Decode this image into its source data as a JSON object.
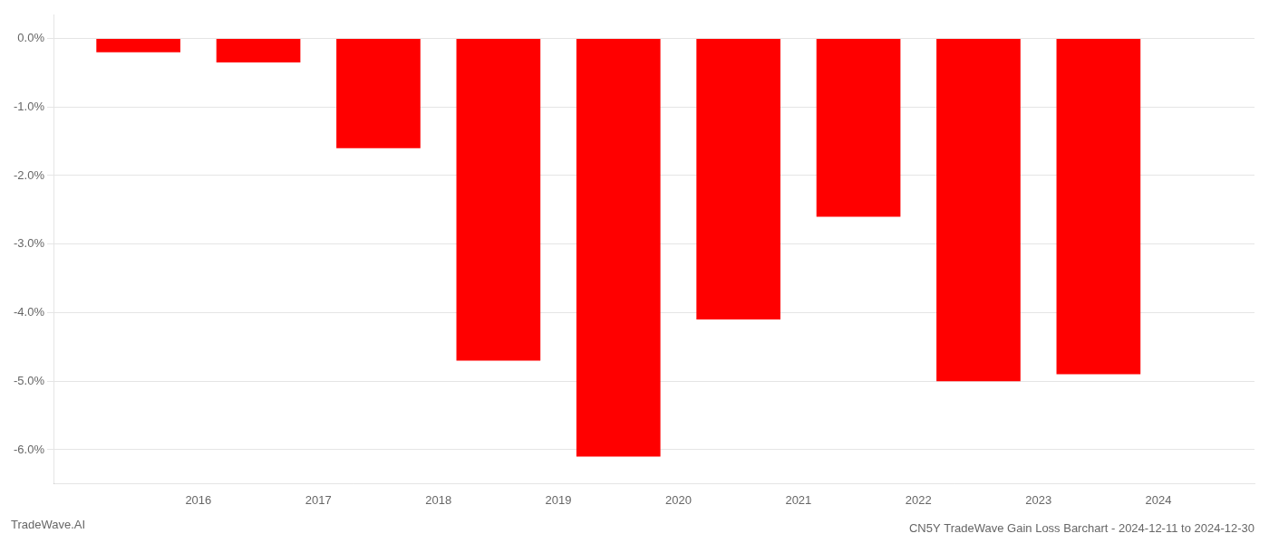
{
  "chart_data": {
    "type": "bar",
    "title": "CN5Y TradeWave Gain Loss Barchart - 2024-12-11 to 2024-12-30",
    "annotations": [
      "TradeWave.AI"
    ],
    "x": [
      2015.5,
      2016.5,
      2017.5,
      2018.5,
      2019.5,
      2020.5,
      2021.5,
      2022.5,
      2023.5
    ],
    "values": [
      -0.2,
      -0.35,
      -1.6,
      -4.7,
      -6.1,
      -4.1,
      -2.6,
      -5.0,
      -4.9
    ],
    "color": "#ff0000",
    "xlim": [
      2014.8,
      2024.8
    ],
    "xticks": [
      2016,
      2017,
      2018,
      2019,
      2020,
      2021,
      2022,
      2023,
      2024
    ],
    "ylim": [
      -6.5,
      0.35
    ],
    "yticks": [
      {
        "value": 0.0,
        "label": "0.0%"
      },
      {
        "value": -1.0,
        "label": "-1.0%"
      },
      {
        "value": -2.0,
        "label": "-2.0%"
      },
      {
        "value": -3.0,
        "label": "-3.0%"
      },
      {
        "value": -4.0,
        "label": "-4.0%"
      },
      {
        "value": -5.0,
        "label": "-5.0%"
      },
      {
        "value": -6.0,
        "label": "-6.0%"
      }
    ],
    "grid": "y"
  }
}
